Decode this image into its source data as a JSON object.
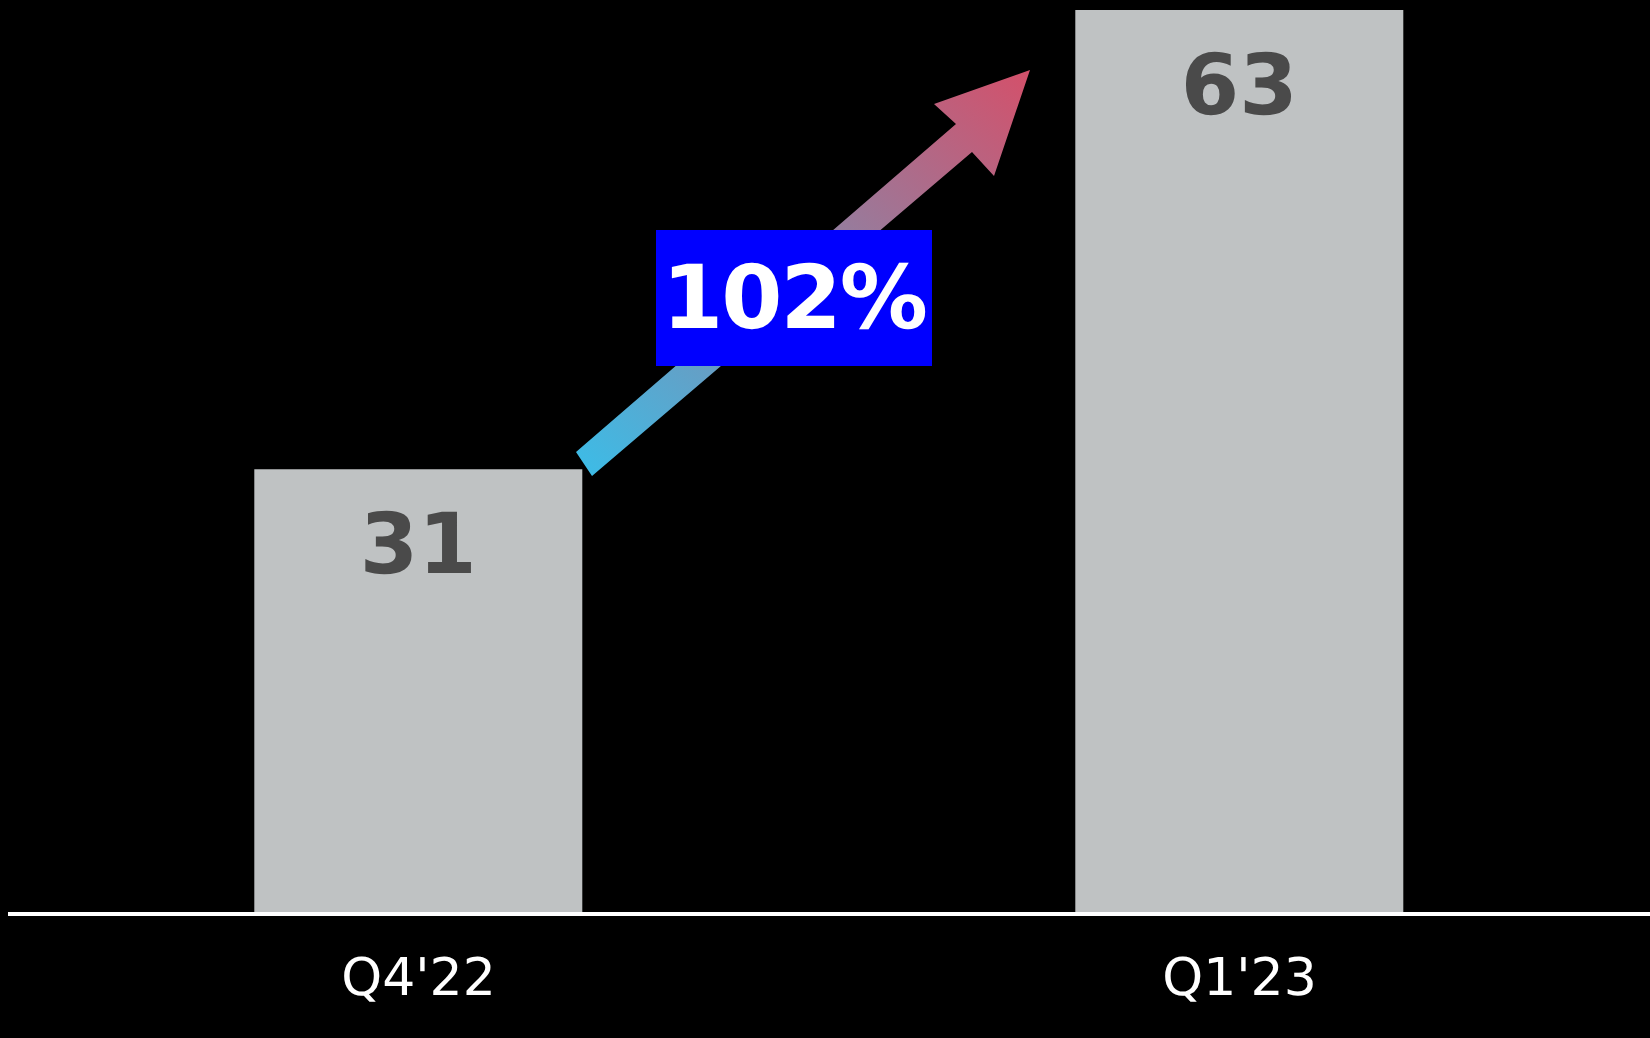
{
  "chart_data": {
    "type": "bar",
    "categories": [
      "Q4'22",
      "Q1'23"
    ],
    "values": [
      31,
      63
    ],
    "color": "#bfc2c3",
    "data_labels": true,
    "annotations": [
      "102%"
    ]
  }
}
